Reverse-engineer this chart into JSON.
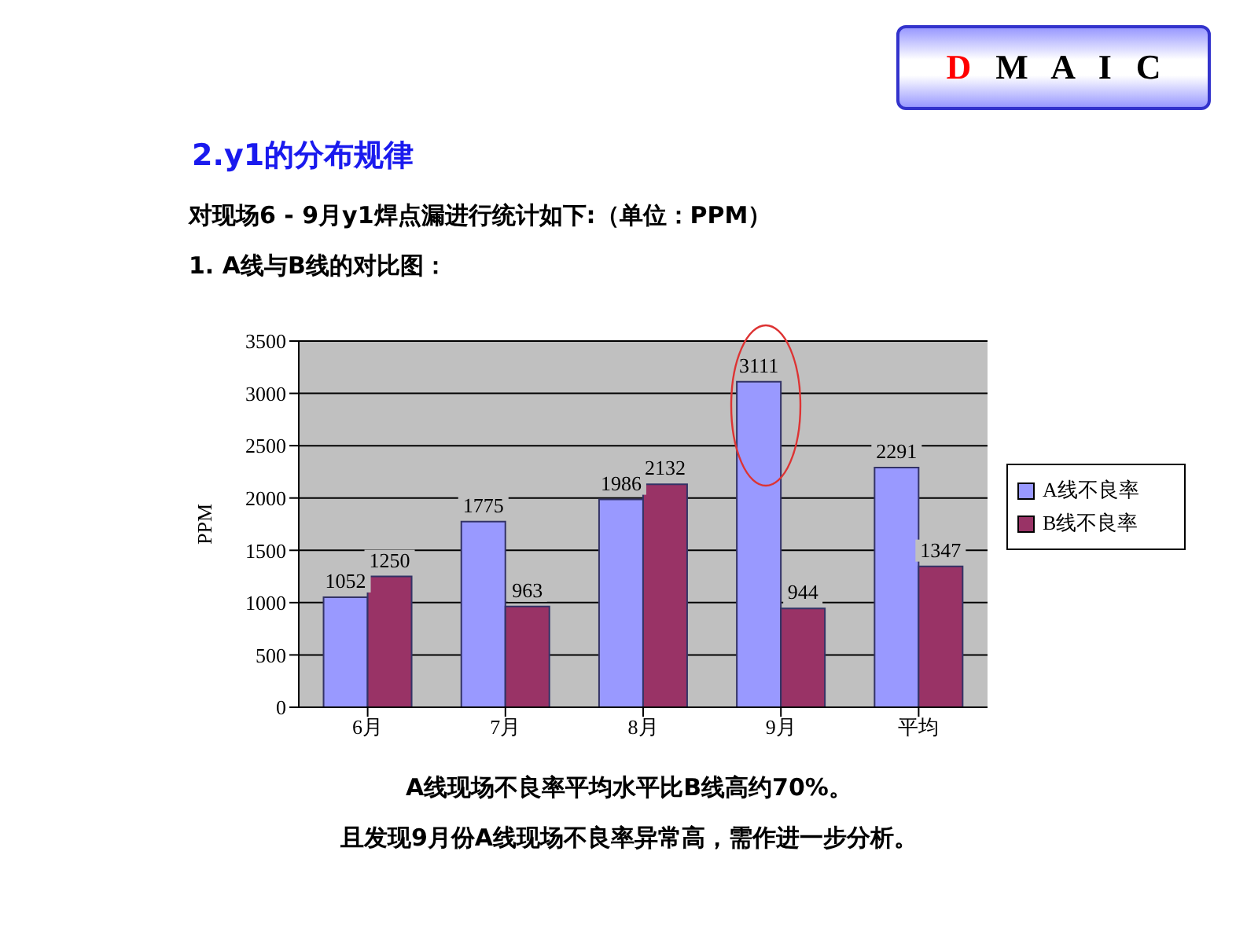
{
  "chart_data": {
    "type": "bar",
    "title": "2.y1的分布规律",
    "subtitle": "对现场6 - 9月y1焊点漏进行统计如下:（单位：PPM）\n1. A线与B线的对比图：",
    "ylabel": "PPM",
    "categories": [
      "6月",
      "7月",
      "8月",
      "9月",
      "平均"
    ],
    "series": [
      {
        "name": "A线不良率",
        "color": "#9999ff",
        "values": [
          1052,
          1775,
          1986,
          3111,
          2291
        ]
      },
      {
        "name": "B线不良率",
        "color": "#993366",
        "values": [
          1250,
          963,
          2132,
          944,
          1347
        ]
      }
    ],
    "ylim": [
      0,
      3500
    ],
    "yticks": [
      0,
      500,
      1000,
      1500,
      2000,
      2500,
      3000,
      3500
    ],
    "grid": "y",
    "legend": "right",
    "data_labels": true,
    "annotations": [
      "D M A I C",
      "A线现场不良率平均水平比B线高约70%。",
      "且发现9月份A线现场不良率异常高，需作进一步分析。"
    ]
  }
}
